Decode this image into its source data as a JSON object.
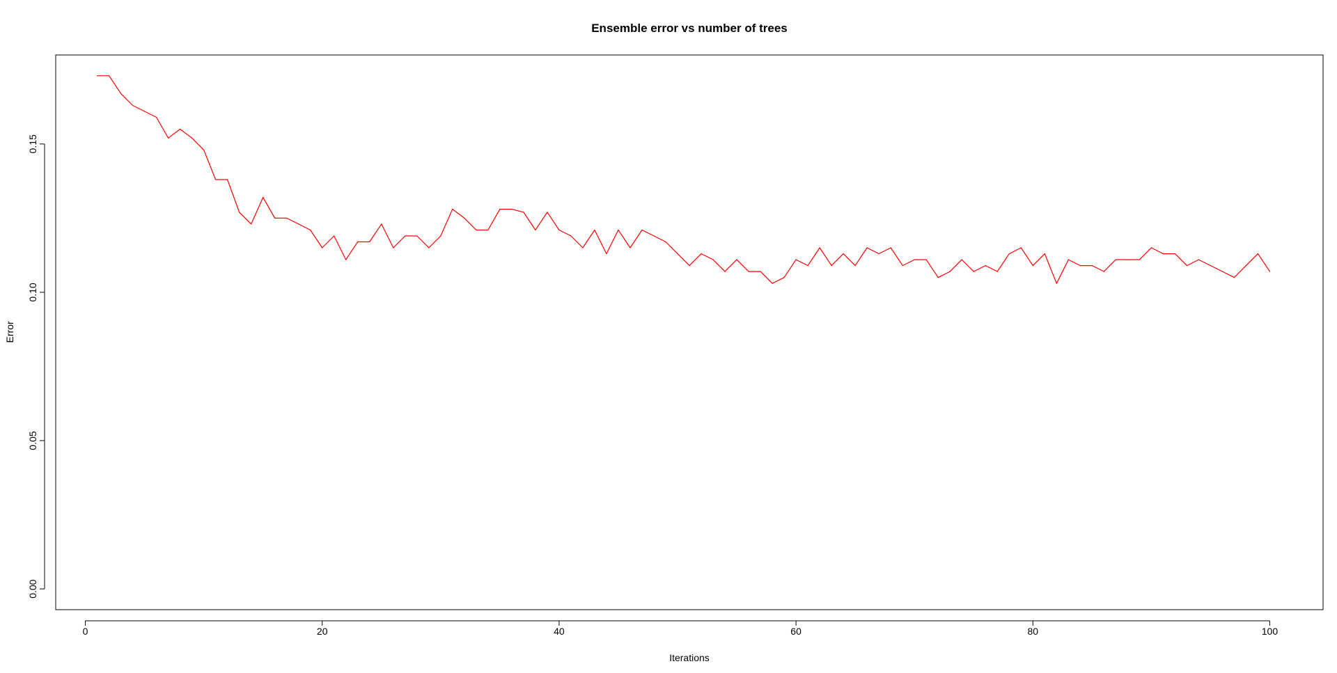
{
  "chart_data": {
    "type": "line",
    "title": "Ensemble error vs number of trees",
    "xlabel": "Iterations",
    "ylabel": "Error",
    "xlim": [
      -2.5,
      104.5
    ],
    "ylim": [
      -0.007,
      0.18
    ],
    "x_ticks": [
      0,
      20,
      40,
      60,
      80,
      100
    ],
    "y_ticks": [
      0.0,
      0.05,
      0.1,
      0.15
    ],
    "x_tick_labels": [
      "0",
      "20",
      "40",
      "60",
      "80",
      "100"
    ],
    "y_tick_labels": [
      "0.00",
      "0.05",
      "0.10",
      "0.15"
    ],
    "grid": false,
    "legend": "none",
    "series": [
      {
        "color": "#ff0000",
        "x": [
          1,
          2,
          3,
          4,
          5,
          6,
          7,
          8,
          9,
          10,
          11,
          12,
          13,
          14,
          15,
          16,
          17,
          18,
          19,
          20,
          21,
          22,
          23,
          24,
          25,
          26,
          27,
          28,
          29,
          30,
          31,
          32,
          33,
          34,
          35,
          36,
          37,
          38,
          39,
          40,
          41,
          42,
          43,
          44,
          45,
          46,
          47,
          48,
          49,
          50,
          51,
          52,
          53,
          54,
          55,
          56,
          57,
          58,
          59,
          60,
          61,
          62,
          63,
          64,
          65,
          66,
          67,
          68,
          69,
          70,
          71,
          72,
          73,
          74,
          75,
          76,
          77,
          78,
          79,
          80,
          81,
          82,
          83,
          84,
          85,
          86,
          87,
          88,
          89,
          90,
          91,
          92,
          93,
          94,
          95,
          96,
          97,
          98,
          99,
          100
        ],
        "values": [
          0.173,
          0.173,
          0.167,
          0.163,
          0.161,
          0.159,
          0.152,
          0.155,
          0.152,
          0.148,
          0.138,
          0.138,
          0.127,
          0.123,
          0.132,
          0.125,
          0.125,
          0.123,
          0.121,
          0.115,
          0.119,
          0.111,
          0.117,
          0.117,
          0.123,
          0.115,
          0.119,
          0.119,
          0.115,
          0.119,
          0.128,
          0.125,
          0.121,
          0.121,
          0.128,
          0.128,
          0.127,
          0.121,
          0.127,
          0.121,
          0.119,
          0.115,
          0.121,
          0.113,
          0.121,
          0.115,
          0.121,
          0.119,
          0.117,
          0.113,
          0.109,
          0.113,
          0.111,
          0.107,
          0.111,
          0.107,
          0.107,
          0.103,
          0.105,
          0.111,
          0.109,
          0.115,
          0.109,
          0.113,
          0.109,
          0.115,
          0.113,
          0.115,
          0.109,
          0.111,
          0.111,
          0.105,
          0.107,
          0.111,
          0.107,
          0.109,
          0.107,
          0.113,
          0.115,
          0.109,
          0.113,
          0.103,
          0.111,
          0.109,
          0.109,
          0.107,
          0.111,
          0.111,
          0.111,
          0.115,
          0.113,
          0.113,
          0.109,
          0.111,
          0.109,
          0.107,
          0.105,
          0.109,
          0.113,
          0.107
        ]
      }
    ]
  }
}
